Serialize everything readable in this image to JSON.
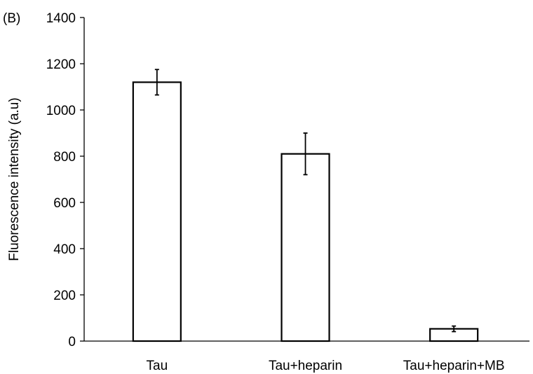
{
  "chart_data": {
    "type": "bar",
    "panel_label": "(B)",
    "title": "",
    "xlabel": "",
    "ylabel": "Fluorescence intensity (a.u)",
    "ylim": [
      0,
      1400
    ],
    "yticks": [
      0,
      200,
      400,
      600,
      800,
      1000,
      1200,
      1400
    ],
    "ytick_labels": [
      "0",
      "200",
      "400",
      "600",
      "800",
      "1000",
      "1200",
      "1400"
    ],
    "categories": [
      "Tau",
      "Tau+heparin",
      "Tau+heparin+MB"
    ],
    "values": [
      1120,
      810,
      53
    ],
    "errors": [
      55,
      90,
      12
    ],
    "grid": false,
    "legend": "none",
    "bar_fill": "#ffffff",
    "bar_stroke": "#000000"
  }
}
